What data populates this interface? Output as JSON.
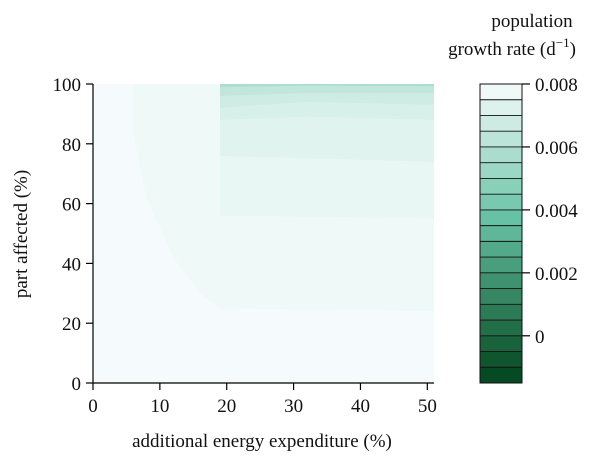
{
  "chart_data": {
    "type": "heatmap",
    "xlabel": "additional energy expenditure (%)",
    "ylabel": "part affected (%)",
    "xlim": [
      0,
      51
    ],
    "ylim": [
      0,
      100
    ],
    "x_ticks": [
      0,
      10,
      20,
      30,
      40,
      50
    ],
    "y_ticks": [
      0,
      20,
      40,
      60,
      80,
      100
    ],
    "colorbar": {
      "title_line1": "population",
      "title_line2": "growth rate (d",
      "title_sup": "−1",
      "title_close": ")",
      "min": -0.0015,
      "max": 0.008,
      "levels": 19,
      "ticks": [
        0.008,
        0.006,
        0.004,
        0.002,
        0
      ],
      "tick_labels": [
        "0.008",
        "0.006",
        "0.004",
        "0.002",
        "0"
      ],
      "color_low": "#00441b",
      "color_mid": "#66c2a4",
      "color_high": "#f7fcfd"
    },
    "regions": [
      {
        "name": "region-base",
        "value": 0.00795,
        "points": [
          [
            0,
            0
          ],
          [
            51,
            0
          ],
          [
            51,
            100
          ],
          [
            0,
            100
          ]
        ]
      },
      {
        "name": "region-level-1",
        "value": 0.00776,
        "points": [
          [
            6,
            100
          ],
          [
            51,
            100
          ],
          [
            51,
            24
          ],
          [
            19,
            25
          ],
          [
            16,
            30
          ],
          [
            12,
            42
          ],
          [
            8,
            62
          ],
          [
            6,
            84
          ]
        ]
      },
      {
        "name": "region-level-2",
        "value": 0.00755,
        "points": [
          [
            19,
            100
          ],
          [
            51,
            100
          ],
          [
            51,
            55
          ],
          [
            19,
            56
          ]
        ]
      },
      {
        "name": "region-level-3",
        "value": 0.00735,
        "points": [
          [
            19,
            100
          ],
          [
            51,
            100
          ],
          [
            51,
            74
          ],
          [
            19,
            76
          ]
        ]
      },
      {
        "name": "region-level-4",
        "value": 0.0071,
        "points": [
          [
            19,
            100
          ],
          [
            51,
            100
          ],
          [
            51,
            88
          ],
          [
            32,
            89
          ],
          [
            19,
            88
          ]
        ]
      },
      {
        "name": "region-level-5",
        "value": 0.0068,
        "points": [
          [
            19,
            100
          ],
          [
            51,
            100
          ],
          [
            51,
            93
          ],
          [
            32,
            94
          ],
          [
            19,
            92
          ]
        ]
      },
      {
        "name": "region-level-6",
        "value": 0.0064,
        "points": [
          [
            19,
            100
          ],
          [
            51,
            100
          ],
          [
            51,
            97
          ],
          [
            32,
            97
          ],
          [
            19,
            96
          ]
        ]
      },
      {
        "name": "region-level-7",
        "value": 0.0058,
        "points": [
          [
            19,
            100
          ],
          [
            51,
            100
          ],
          [
            51,
            99.3
          ],
          [
            32,
            99.4
          ],
          [
            19,
            99
          ]
        ]
      }
    ]
  }
}
